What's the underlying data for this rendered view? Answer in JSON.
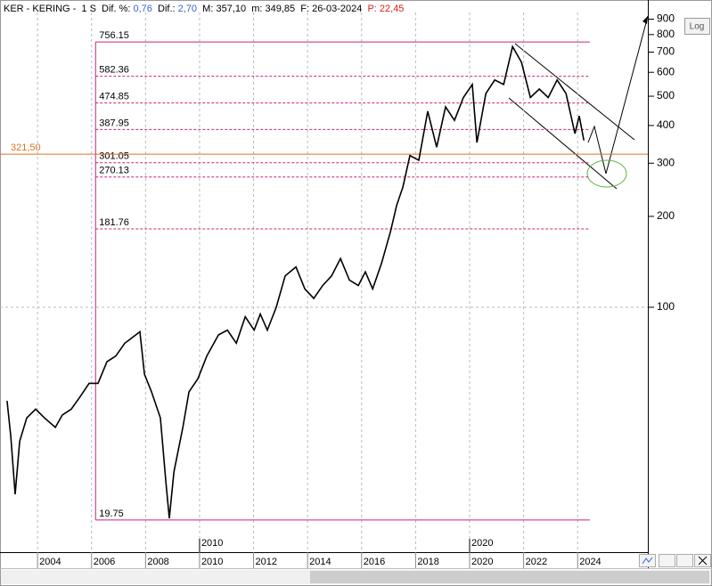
{
  "chart_data": {
    "type": "line",
    "header": [
      {
        "text": "KER - KERING -  1 S  Dif. %: ",
        "color": "#000000"
      },
      {
        "text": "0,76",
        "color": "#3366cc"
      },
      {
        "text": "  Dif.: ",
        "color": "#000000"
      },
      {
        "text": "2,70",
        "color": "#3366cc"
      },
      {
        "text": "  M: 357,10  m: 349,85  F: 26-03-2024  ",
        "color": "#000000"
      },
      {
        "text": "P: 22,45",
        "color": "#e0201a"
      }
    ],
    "log_button": "Log",
    "log_scale": true,
    "xlim": [
      2002.61,
      2026.6
    ],
    "ylim": [
      15.45,
      947
    ],
    "xticks": [
      2004,
      2006,
      2008,
      2010,
      2012,
      2014,
      2016,
      2018,
      2020,
      2022,
      2024
    ],
    "decade_ticks": [
      2010,
      2020
    ],
    "yticks": [
      100,
      200,
      300,
      400,
      500,
      600,
      700,
      800,
      900
    ],
    "series": [
      {
        "name": "KER",
        "color": "#000000",
        "x": [
          2002.87,
          2003.01,
          2003.17,
          2003.34,
          2003.6,
          2003.93,
          2004.26,
          2004.66,
          2004.92,
          2005.25,
          2005.58,
          2005.91,
          2006.24,
          2006.57,
          2006.9,
          2007.23,
          2007.56,
          2007.79,
          2007.96,
          2008.22,
          2008.55,
          2008.75,
          2008.88,
          2009.05,
          2009.38,
          2009.61,
          2009.94,
          2010.27,
          2010.7,
          2011.03,
          2011.36,
          2011.69,
          2012.02,
          2012.25,
          2012.51,
          2012.84,
          2013.17,
          2013.57,
          2013.9,
          2014.23,
          2014.56,
          2014.89,
          2015.22,
          2015.55,
          2015.88,
          2016.14,
          2016.41,
          2016.74,
          2017.07,
          2017.3,
          2017.53,
          2017.79,
          2018.12,
          2018.45,
          2018.78,
          2019.11,
          2019.44,
          2019.77,
          2020.1,
          2020.27,
          2020.6,
          2020.93,
          2021.26,
          2021.59,
          2021.92,
          2022.25,
          2022.58,
          2022.91,
          2023.24,
          2023.57,
          2023.9,
          2024.06,
          2024.23
        ],
        "values": [
          49,
          37.4,
          24,
          36,
          43,
          46,
          43,
          40,
          44,
          46,
          50.6,
          56,
          56,
          66,
          69,
          76,
          80,
          83,
          60,
          52.5,
          43,
          26.5,
          20,
          28.5,
          40,
          52.5,
          58,
          69,
          81,
          84,
          76,
          93,
          84,
          95,
          84,
          100,
          127,
          136,
          115,
          107,
          118,
          127,
          145,
          123,
          118,
          131,
          115,
          140,
          178,
          218,
          250,
          318,
          307,
          446,
          339,
          461,
          416,
          495,
          547,
          351,
          510,
          566,
          547,
          730,
          648,
          495,
          528,
          495,
          566,
          510,
          376,
          430,
          357.1
        ]
      }
    ],
    "fib_levels": [
      756.15,
      582.36,
      474.85,
      387.95,
      301.05,
      270.13,
      181.76,
      19.75
    ],
    "fib_start": 2006.15,
    "fib_end": 2024.45,
    "support_level": {
      "value": 321.5,
      "label": "321,50"
    }
  }
}
